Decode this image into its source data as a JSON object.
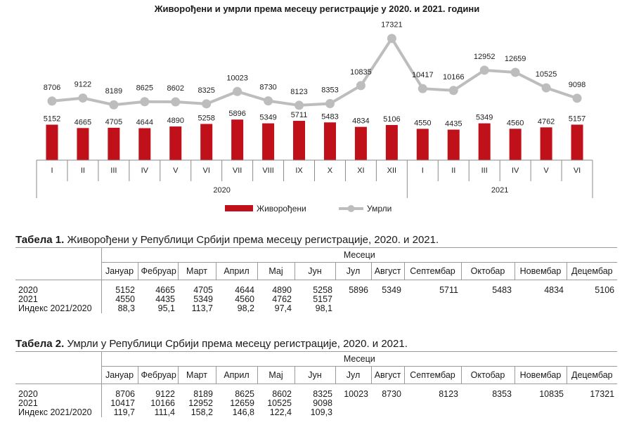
{
  "chart_data": {
    "type": "bar",
    "title": "Живорођени и умрли према месецу регистрације у 2020.  и 2021. години",
    "categories": [
      "I",
      "II",
      "III",
      "IV",
      "V",
      "VI",
      "VII",
      "VIII",
      "IX",
      "X",
      "XI",
      "XII",
      "I",
      "II",
      "III",
      "IV",
      "V",
      "VI"
    ],
    "groups": [
      {
        "label": "2020",
        "count": 12
      },
      {
        "label": "2021",
        "count": 6
      }
    ],
    "series": [
      {
        "name": "Живорођени",
        "type": "bar",
        "color": "#c0101a",
        "values": [
          5152,
          4665,
          4705,
          4644,
          4890,
          5258,
          5896,
          5349,
          5711,
          5483,
          4834,
          5106,
          4550,
          4435,
          5349,
          4560,
          4762,
          5157
        ]
      },
      {
        "name": "Умрли",
        "type": "line",
        "color": "#bdbdbd",
        "values": [
          8706,
          9122,
          8189,
          8625,
          8602,
          8325,
          10023,
          8730,
          8123,
          8353,
          10835,
          17321,
          10417,
          10166,
          12952,
          12659,
          10525,
          9098
        ]
      }
    ],
    "legend_position": "bottom"
  },
  "table1": {
    "title_bold": "Табела 1.",
    "title_rest": " Живорођени у Републици Србији према месецу регистрације, 2020. и 2021.",
    "months_header": "Месеци",
    "months": [
      "Јануар",
      "Фебруар",
      "Март",
      "Април",
      "Мај",
      "Јун",
      "Јул",
      "Август",
      "Септембар",
      "Октобар",
      "Новембар",
      "Децембар"
    ],
    "rows": [
      {
        "label": "2020",
        "values": [
          "5152",
          "4665",
          "4705",
          "4644",
          "4890",
          "5258",
          "5896",
          "5349",
          "5711",
          "5483",
          "4834",
          "5106"
        ]
      },
      {
        "label": "2021",
        "values": [
          "4550",
          "4435",
          "5349",
          "4560",
          "4762",
          "5157",
          "",
          "",
          "",
          "",
          "",
          ""
        ]
      },
      {
        "label": "Индекс 2021/2020",
        "values": [
          "88,3",
          "95,1",
          "113,7",
          "98,2",
          "97,4",
          "98,1",
          "",
          "",
          "",
          "",
          "",
          ""
        ]
      }
    ]
  },
  "table2": {
    "title_bold": "Табела 2.",
    "title_rest": " Умрли у Републици Србији према месецу регистрације, 2020. и 2021.",
    "months_header": "Месеци",
    "months": [
      "Јануар",
      "Фебруар",
      "Март",
      "Април",
      "Мај",
      "Јун",
      "Јул",
      "Август",
      "Септембар",
      "Октобар",
      "Новембар",
      "Децембар"
    ],
    "rows": [
      {
        "label": "2020",
        "values": [
          "8706",
          "9122",
          "8189",
          "8625",
          "8602",
          "8325",
          "10023",
          "8730",
          "8123",
          "8353",
          "10835",
          "17321"
        ]
      },
      {
        "label": "2021",
        "values": [
          "10417",
          "10166",
          "12952",
          "12659",
          "10525",
          "9098",
          "",
          "",
          "",
          "",
          "",
          ""
        ]
      },
      {
        "label": "Индекс 2021/2020",
        "values": [
          "119,7",
          "111,4",
          "158,2",
          "146,8",
          "122,4",
          "109,3",
          "",
          "",
          "",
          "",
          "",
          ""
        ]
      }
    ]
  }
}
